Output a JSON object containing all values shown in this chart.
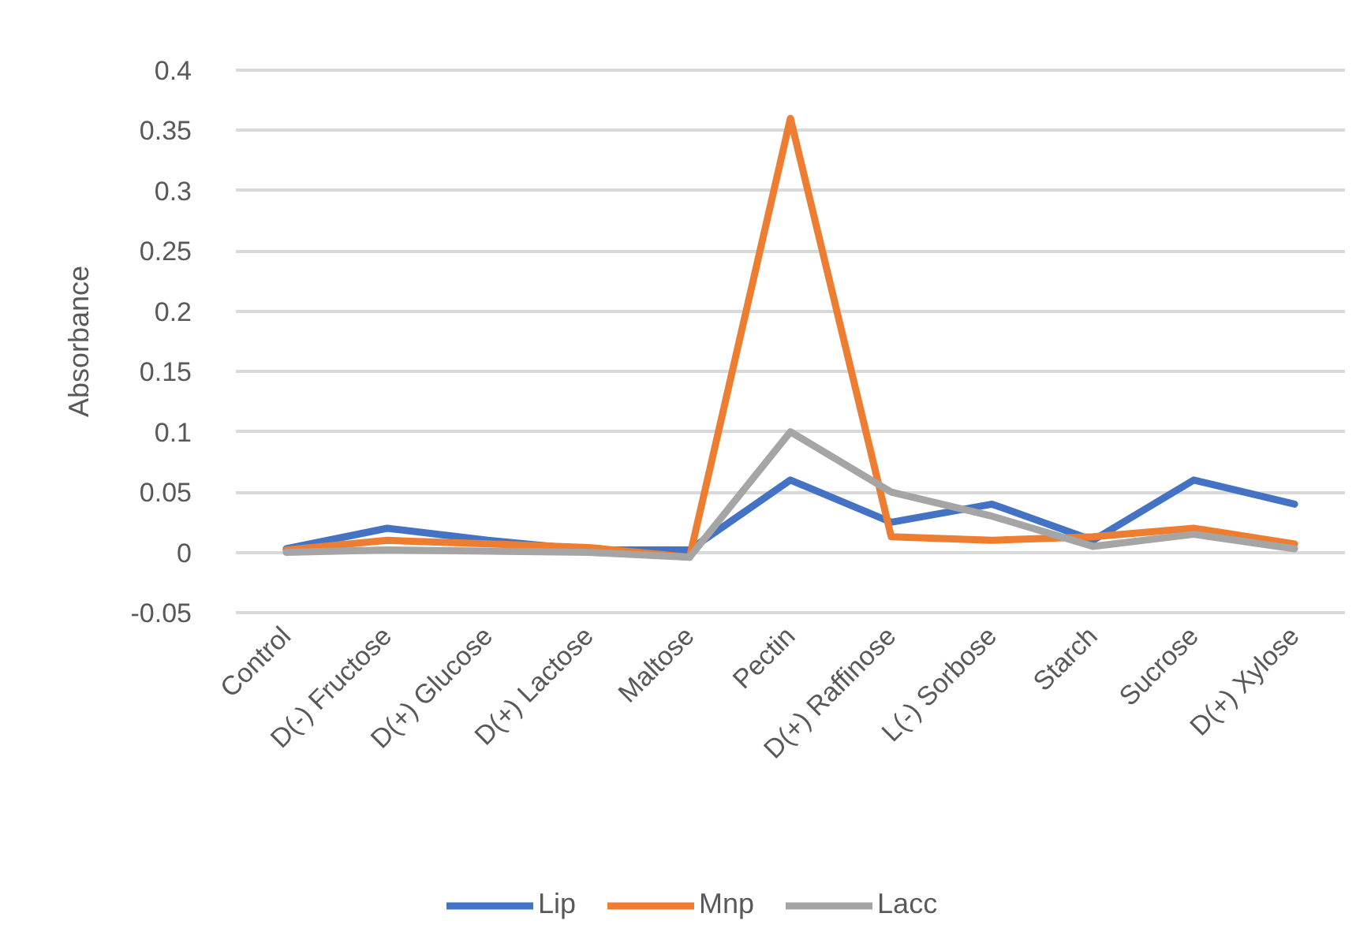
{
  "chart_data": {
    "type": "line",
    "ylabel": "Absorbance",
    "categories": [
      "Control",
      "D(-) Fructose",
      "D(+) Glucose",
      "D(+) Lactose",
      "Maltose",
      "Pectin",
      "D(+) Raffinose",
      "L(-) Sorbose",
      "Starch",
      "Sucrose",
      "D(+) Xylose"
    ],
    "series": [
      {
        "name": "Lip",
        "color": "#4472c4",
        "values": [
          0.003,
          0.02,
          0.01,
          0.002,
          0.002,
          0.06,
          0.025,
          0.04,
          0.01,
          0.06,
          0.04
        ]
      },
      {
        "name": "Mnp",
        "color": "#ed7d31",
        "values": [
          0.002,
          0.01,
          0.007,
          0.004,
          -0.004,
          0.36,
          0.013,
          0.01,
          0.013,
          0.02,
          0.007
        ]
      },
      {
        "name": "Lacc",
        "color": "#a5a5a5",
        "values": [
          0.0,
          0.002,
          0.001,
          0.0,
          -0.004,
          0.1,
          0.05,
          0.03,
          0.005,
          0.015,
          0.003
        ]
      }
    ],
    "ylim": [
      -0.05,
      0.4
    ],
    "yticks": [
      -0.05,
      0,
      0.05,
      0.1,
      0.15,
      0.2,
      0.25,
      0.3,
      0.35,
      0.4
    ],
    "grid": "y",
    "legend": "bottom",
    "line_style": "solid",
    "marker": "none"
  }
}
